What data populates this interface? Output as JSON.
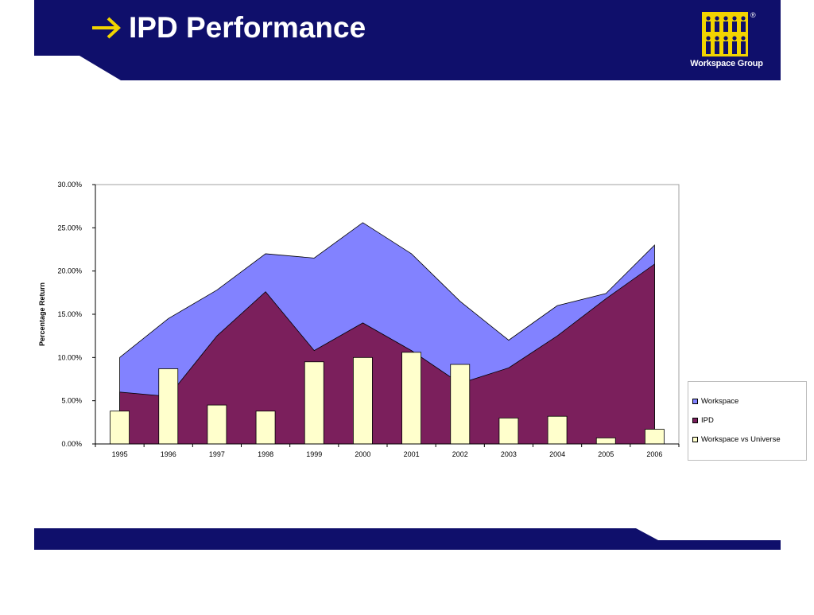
{
  "header": {
    "title": "IPD Performance",
    "logo_text": "Workspace Group",
    "logo_mark": "®",
    "arrow_icon": "right-arrow-icon"
  },
  "colors": {
    "band": "#0f0f6b",
    "arrow": "#f2d400",
    "logo_yellow": "#f2d400",
    "workspace_fill": "#8282ff",
    "ipd_fill": "#7b1f5c",
    "bar_fill": "#ffffcc"
  },
  "chart_data": {
    "type": "area",
    "categories": [
      "1995",
      "1996",
      "1997",
      "1998",
      "1999",
      "2000",
      "2001",
      "2002",
      "2003",
      "2004",
      "2005",
      "2006"
    ],
    "ylabel": "Percentage Return",
    "ylim": [
      0,
      30
    ],
    "yticks": [
      "0.00%",
      "5.00%",
      "10.00%",
      "15.00%",
      "20.00%",
      "25.00%",
      "30.00%"
    ],
    "grid": false,
    "legend_position": "right",
    "series": [
      {
        "name": "Workspace",
        "kind": "area",
        "color": "#8282ff",
        "values": [
          10.0,
          14.5,
          17.8,
          22.0,
          21.5,
          25.6,
          22.0,
          16.5,
          12.0,
          16.0,
          17.4,
          23.0
        ]
      },
      {
        "name": "IPD",
        "kind": "area",
        "color": "#7b1f5c",
        "values": [
          6.0,
          5.5,
          12.5,
          17.6,
          10.8,
          14.0,
          10.8,
          7.0,
          8.8,
          12.5,
          16.8,
          20.8
        ]
      },
      {
        "name": "Workspace vs Universe",
        "kind": "bar",
        "color": "#ffffcc",
        "values": [
          3.8,
          8.7,
          4.5,
          3.8,
          9.5,
          10.0,
          10.6,
          9.2,
          3.0,
          3.2,
          0.7,
          1.7
        ]
      }
    ]
  }
}
